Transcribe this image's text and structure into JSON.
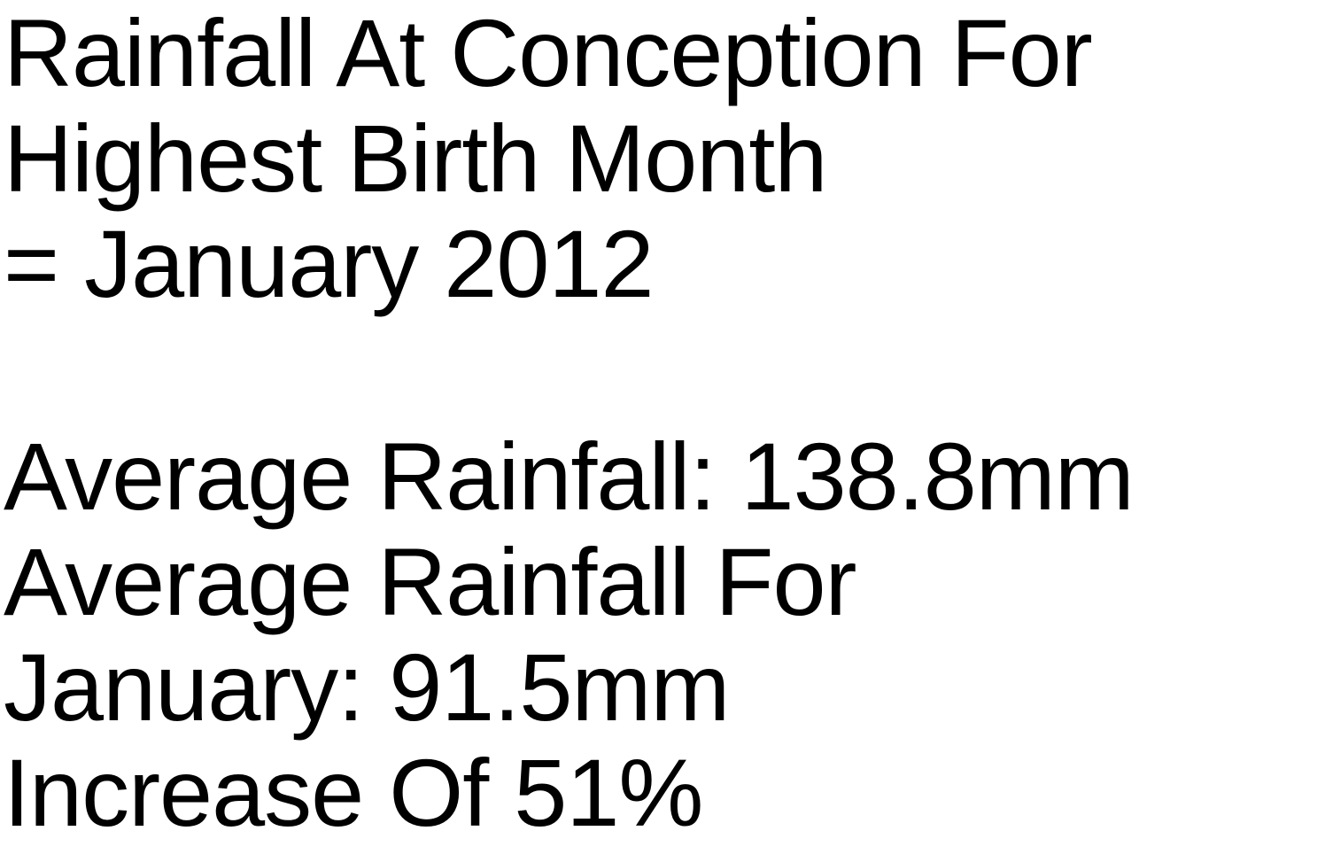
{
  "title_lines": [
    "Rainfall At Conception For",
    "Highest Birth Month",
    "= January 2012"
  ],
  "stats_lines": [
    "Average Rainfall: 138.8mm",
    "Average Rainfall For",
    "January: 91.5mm",
    "Increase Of 51%"
  ],
  "colors": {
    "background": "#ffffff",
    "text": "#000000"
  }
}
